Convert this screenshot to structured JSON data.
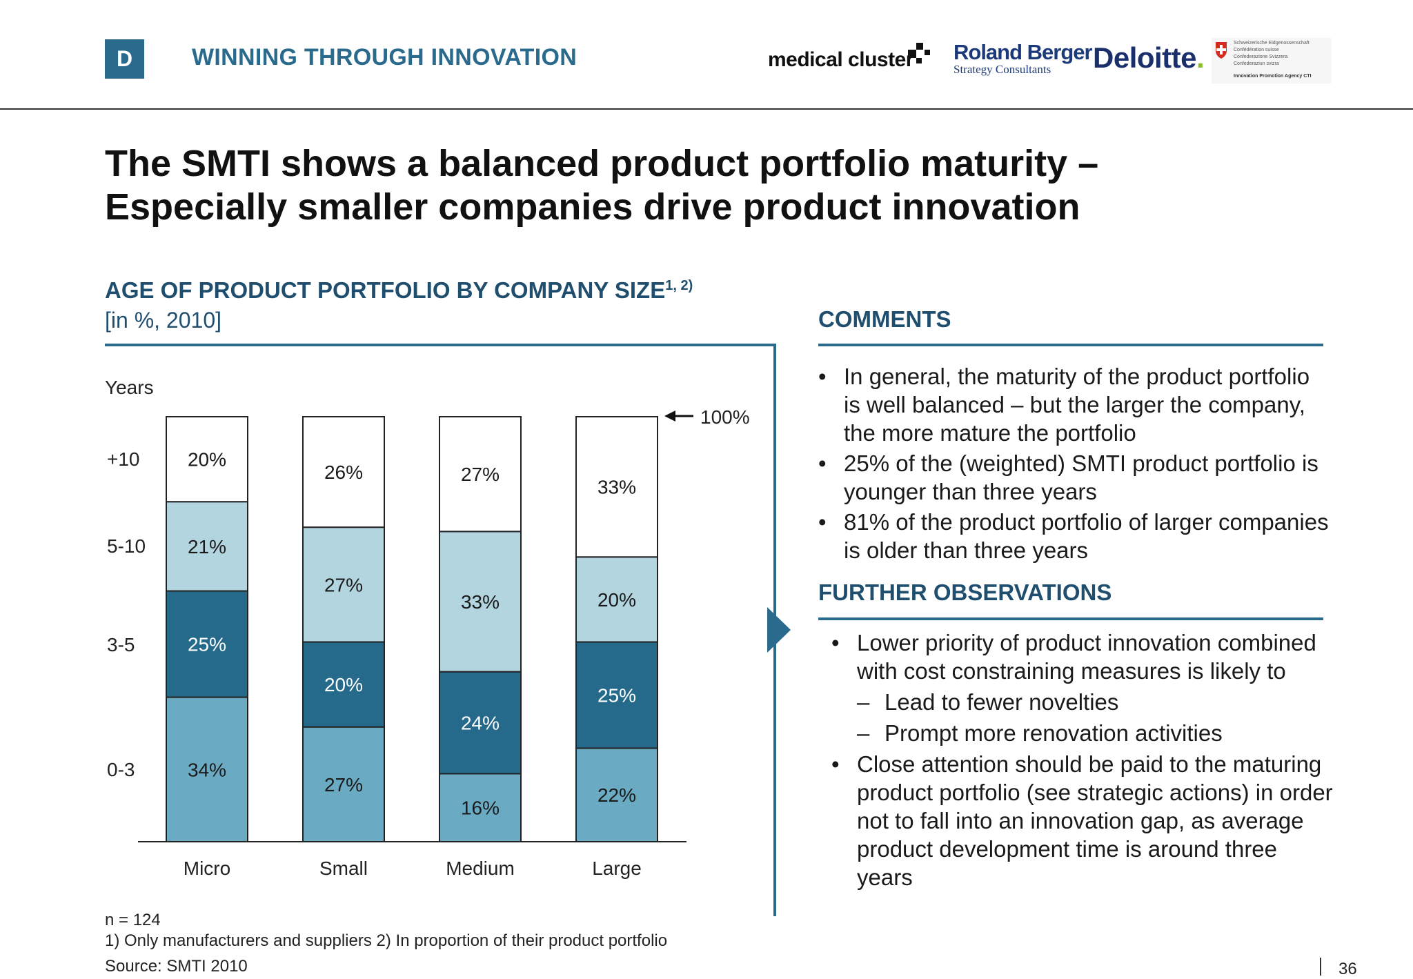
{
  "header": {
    "badge": "D",
    "section_title": "WINNING THROUGH INNOVATION",
    "logos": {
      "medical_cluster": "medical cluster",
      "roland_berger": "Roland Berger",
      "roland_berger_sub": "Strategy Consultants",
      "deloitte": "Deloitte",
      "cti_lines": [
        "Schweizerische Eidgenossenschaft",
        "Confédération suisse",
        "Confederazione Svizzera",
        "Confederaziun svizra"
      ],
      "cti_agency": "Innovation Promotion Agency CTI"
    }
  },
  "title": {
    "line1": "The SMTI shows a balanced product portfolio maturity –",
    "line2": "Especially smaller companies drive product innovation"
  },
  "chart_data": {
    "type": "bar",
    "stacked": true,
    "title": "AGE OF PRODUCT PORTFOLIO BY COMPANY SIZE",
    "title_superscript": "1, 2)",
    "subtitle": "[in %, 2010]",
    "ylabel": "Years",
    "categories": [
      "Micro",
      "Small",
      "Medium",
      "Large"
    ],
    "series": [
      {
        "name": "0-3",
        "values": [
          34,
          27,
          16,
          22
        ],
        "color": "#6aabc3",
        "label_color": "#1a1a1a"
      },
      {
        "name": "3-5",
        "values": [
          25,
          20,
          24,
          25
        ],
        "color": "#256a8a",
        "label_color": "#ffffff"
      },
      {
        "name": "5-10",
        "values": [
          21,
          27,
          33,
          20
        ],
        "color": "#b3d5e0",
        "label_color": "#1a1a1a"
      },
      {
        "name": "+10",
        "values": [
          20,
          26,
          27,
          33
        ],
        "color": "#ffffff",
        "label_color": "#1a1a1a"
      }
    ],
    "total_annotation": "100%",
    "ylim": [
      0,
      100
    ],
    "legend": "left"
  },
  "comments": {
    "heading": "COMMENTS",
    "bullets": [
      "In general, the maturity of the product portfolio is well balanced – but the larger the company, the more mature the portfolio",
      "25% of the (weighted) SMTI product portfolio is younger than three years",
      "81% of the product portfolio of larger companies is older than three years"
    ]
  },
  "further": {
    "heading": "FURTHER OBSERVATIONS",
    "bullet1": "Lower priority of product innovation combined with cost constraining measures is likely to",
    "sub": [
      "Lead to fewer novelties",
      "Prompt more renovation activities"
    ],
    "bullet2": "Close attention should be paid to the maturing product portfolio (see strategic actions) in order not to fall into an innovation gap, as average product development time is around three years",
    "bullet_mark": "•",
    "sub_mark": "–"
  },
  "footer": {
    "n": "n = 124",
    "notes": "1) Only manufacturers and suppliers   2) In proportion of their product portfolio",
    "source": "Source:  SMTI 2010",
    "page": "36"
  }
}
